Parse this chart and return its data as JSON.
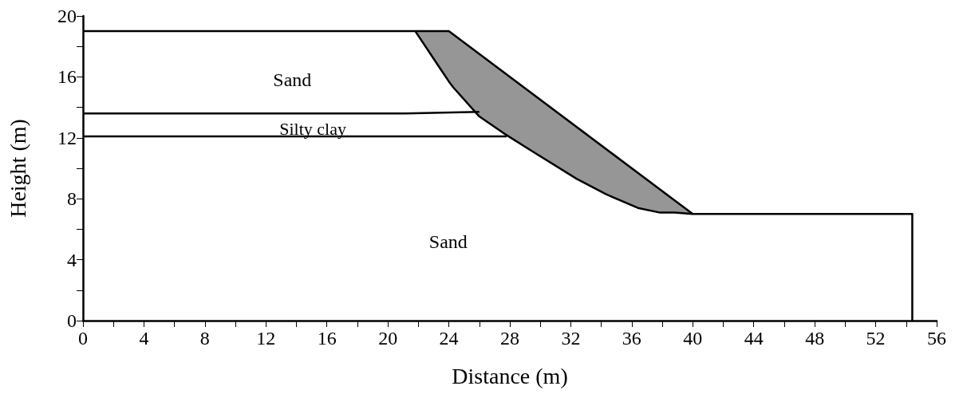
{
  "chart_data": {
    "type": "line",
    "xlabel": "Distance (m)",
    "ylabel": "Height (m)",
    "xlim": [
      0,
      56
    ],
    "ylim": [
      0,
      20
    ],
    "xticks": [
      0,
      {
        "value": 2,
        "label": null
      },
      4,
      {
        "value": 6,
        "label": null
      },
      8,
      {
        "value": 10,
        "label": null
      },
      12,
      {
        "value": 14,
        "label": null
      },
      16,
      {
        "value": 18,
        "label": null
      },
      20,
      {
        "value": 22,
        "label": null
      },
      24,
      {
        "value": 26,
        "label": null
      },
      28,
      {
        "value": 30,
        "label": null
      },
      32,
      {
        "value": 34,
        "label": null
      },
      36,
      {
        "value": 38,
        "label": null
      },
      40,
      {
        "value": 42,
        "label": null
      },
      44,
      {
        "value": 46,
        "label": null
      },
      48,
      {
        "value": 50,
        "label": null
      },
      52,
      {
        "value": 54,
        "label": null
      },
      56
    ],
    "yticks": [
      0,
      {
        "value": 2,
        "label": null
      },
      4,
      {
        "value": 6,
        "label": null
      },
      8,
      {
        "value": 10,
        "label": null
      },
      12,
      {
        "value": 14,
        "label": null
      },
      16,
      {
        "value": 18,
        "label": null
      },
      20
    ],
    "grid": false,
    "marker": "none",
    "line_style": "solid",
    "series": [
      {
        "color": "#000000",
        "x": [
          0,
          24,
          40,
          54.4,
          54.4
        ],
        "values": [
          19,
          19,
          7,
          7,
          0
        ]
      },
      {
        "color": "#000000",
        "x": [
          0,
          21,
          26
        ],
        "values": [
          13.6,
          13.6,
          13.7
        ]
      },
      {
        "color": "#000000",
        "x": [
          0,
          27.8
        ],
        "values": [
          12.1,
          12.1
        ]
      },
      {
        "color": "#000000",
        "x": [
          21.8,
          23.4,
          24,
          24.3,
          26,
          27.6,
          29.5,
          32.4,
          34.3,
          36.4,
          37.8,
          38.8,
          40
        ],
        "values": [
          19,
          16.6,
          15.7,
          15.3,
          13.4,
          12.3,
          11.1,
          9.3,
          8.3,
          7.4,
          7.1,
          7.1,
          7
        ],
        "lower": [
          19,
          16.6,
          15.7,
          15.3,
          13.4,
          12.3,
          11.1,
          9.3,
          8.3,
          7.4,
          7.1,
          7.1,
          7
        ],
        "upper": [
          19,
          19,
          19,
          18.8,
          17.5,
          16.3,
          14.9,
          12.7,
          11.3,
          9.7,
          8.7,
          7.9,
          7
        ]
      }
    ],
    "annotations": [
      "Sand",
      "Silty clay",
      "Sand"
    ]
  }
}
